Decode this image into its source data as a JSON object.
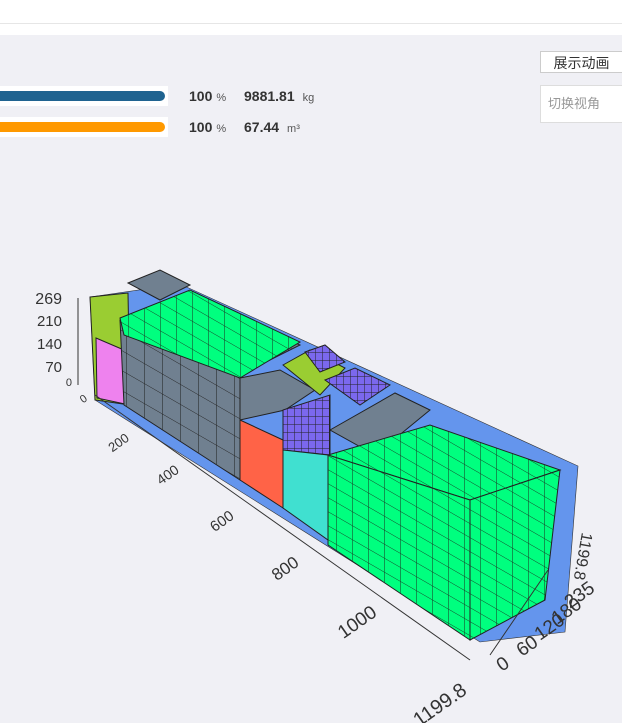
{
  "toolbar": {
    "animate_button": "展示动画",
    "view_placeholder": "切换视角"
  },
  "stats": [
    {
      "percent": 100,
      "percent_unit": "%",
      "amount": 9881.81,
      "unit": "kg"
    },
    {
      "percent": 100,
      "percent_unit": "%",
      "amount": 67.44,
      "unit": "m³"
    }
  ],
  "axes": {
    "height_ticks": [
      269,
      210,
      140,
      70,
      0
    ],
    "length_ticks": [
      0,
      200,
      400,
      600,
      800,
      1000,
      1199.8
    ],
    "width_ticks": [
      0,
      60,
      120,
      180,
      235
    ],
    "side_label": 1199.8
  }
}
